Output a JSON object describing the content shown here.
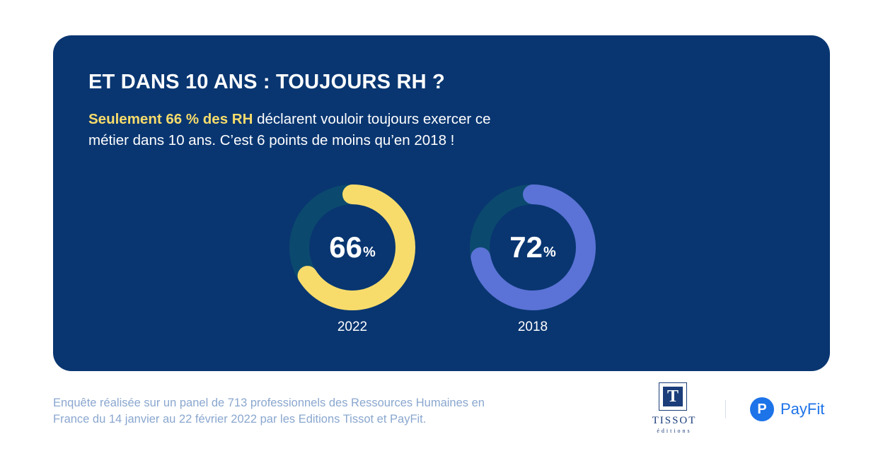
{
  "card": {
    "title": "ET DANS 10 ANS : TOUJOURS RH ?",
    "lead_highlight": "Seulement 66 % des RH",
    "lead_rest": " déclarent vouloir toujours exercer ce métier dans 10 ans. C’est 6 points de moins qu’en 2018 !"
  },
  "chart_data": {
    "type": "donut",
    "items": [
      {
        "year": "2022",
        "value": 66,
        "value_label": "66",
        "unit": "%",
        "color": "#f8dc6b"
      },
      {
        "year": "2018",
        "value": 72,
        "value_label": "72",
        "unit": "%",
        "color": "#5b72d6"
      }
    ],
    "track_color": "#0b4a6e"
  },
  "footer": {
    "note": "Enquête réalisée sur un panel de 713 professionnels des Ressources Humaines en France du 14 janvier au 22 février 2022 par les Editions Tissot et PayFit.",
    "tissot_mark": "T",
    "tissot_word": "TISSOT",
    "tissot_sub": "éditions",
    "payfit_mark": "P",
    "payfit_name": "PayFit"
  },
  "colors": {
    "card_bg": "#093671",
    "highlight": "#f8dc6b",
    "footnote": "#8aa7cf",
    "payfit_blue": "#1d73e8"
  }
}
